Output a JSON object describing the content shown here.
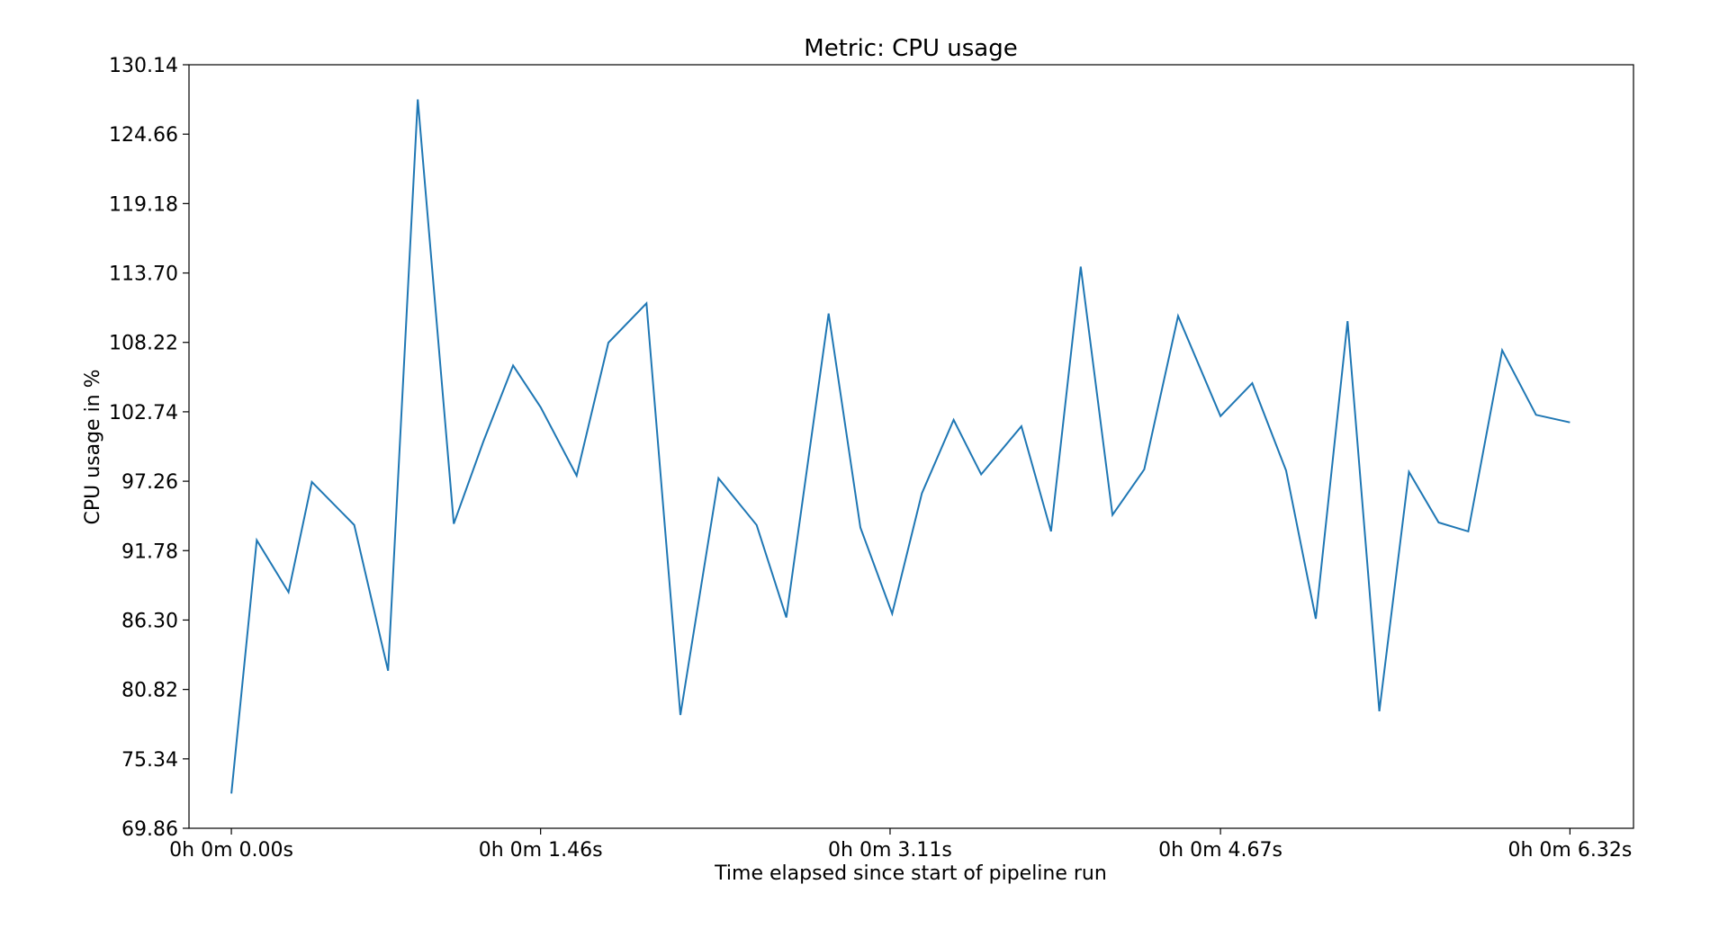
{
  "chart_data": {
    "type": "line",
    "title": "Metric: CPU usage",
    "xlabel": "Time elapsed since start of pipeline run",
    "ylabel": "CPU usage in %",
    "ylim": [
      69.86,
      130.14
    ],
    "xlim": [
      -0.2,
      6.62
    ],
    "yticks": [
      69.86,
      75.34,
      80.82,
      86.3,
      91.78,
      97.26,
      102.74,
      108.22,
      113.7,
      119.18,
      124.66,
      130.14
    ],
    "ytick_labels": [
      "69.86",
      "75.34",
      "80.82",
      "86.30",
      "91.78",
      "97.26",
      "102.74",
      "108.22",
      "113.70",
      "119.18",
      "124.66",
      "130.14"
    ],
    "xticks": [
      0.0,
      1.46,
      3.11,
      4.67,
      6.32
    ],
    "xtick_labels": [
      "0h 0m 0.00s",
      "0h 0m 1.46s",
      "0h 0m 3.11s",
      "0h 0m 4.67s",
      "0h 0m 6.32s"
    ],
    "grid": false,
    "line_color": "#1f77b4",
    "series": [
      {
        "x": [
          0.0,
          0.12,
          0.27,
          0.38,
          0.58,
          0.74,
          0.88,
          1.05,
          1.19,
          1.33,
          1.46,
          1.63,
          1.78,
          1.96,
          2.12,
          2.3,
          2.48,
          2.62,
          2.82,
          2.97,
          3.12,
          3.26,
          3.41,
          3.54,
          3.73,
          3.87,
          4.01,
          4.16,
          4.31,
          4.47,
          4.67,
          4.82,
          4.98,
          5.12,
          5.27,
          5.42,
          5.56,
          5.7,
          5.84,
          6.0,
          6.16,
          6.32
        ],
        "values": [
          72.6,
          92.6,
          88.5,
          97.2,
          93.8,
          82.3,
          127.4,
          93.9,
          100.4,
          106.4,
          103.1,
          97.7,
          108.2,
          111.3,
          78.8,
          97.5,
          93.8,
          86.5,
          110.5,
          93.6,
          86.8,
          96.3,
          102.1,
          97.8,
          101.6,
          93.3,
          114.2,
          94.6,
          98.2,
          110.3,
          102.4,
          105.0,
          98.1,
          86.4,
          109.9,
          79.1,
          98.0,
          94.0,
          93.3,
          107.6,
          102.5,
          101.9
        ]
      }
    ]
  }
}
